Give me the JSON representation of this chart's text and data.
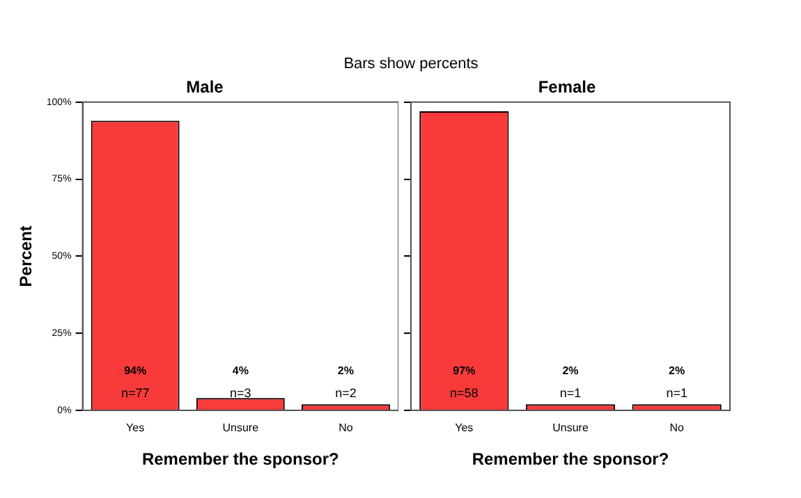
{
  "chart_data": [
    {
      "type": "bar",
      "title": "Male",
      "xlabel": "Remember the sponsor?",
      "ylabel": "Percent",
      "categories": [
        "Yes",
        "Unsure",
        "No"
      ],
      "values": [
        94,
        4,
        2
      ],
      "color": "#f83a3a",
      "value_labels": [
        "94%",
        "4%",
        "2%"
      ],
      "ylim": [
        0,
        100
      ],
      "yticks": [
        {
          "value": 0,
          "label": "0%"
        },
        {
          "value": 25,
          "label": "25%"
        },
        {
          "value": 50,
          "label": "50%"
        },
        {
          "value": 75,
          "label": "75%"
        },
        {
          "value": 100,
          "label": "100%"
        }
      ],
      "annotations": [
        "Bars show percents",
        "n=77",
        "n=3",
        "n=2"
      ]
    },
    {
      "type": "bar",
      "title": "Female",
      "xlabel": "Remember the sponsor?",
      "categories": [
        "Yes",
        "Unsure",
        "No"
      ],
      "values": [
        97,
        2,
        2
      ],
      "color": "#f83a3a",
      "value_labels": [
        "97%",
        "2%",
        "2%"
      ],
      "ylim": [
        0,
        100
      ],
      "yticks": [
        0,
        25,
        50,
        75,
        100
      ],
      "tick_labels": "x",
      "annotations": [
        "n=58",
        "n=1",
        "n=1"
      ]
    }
  ]
}
